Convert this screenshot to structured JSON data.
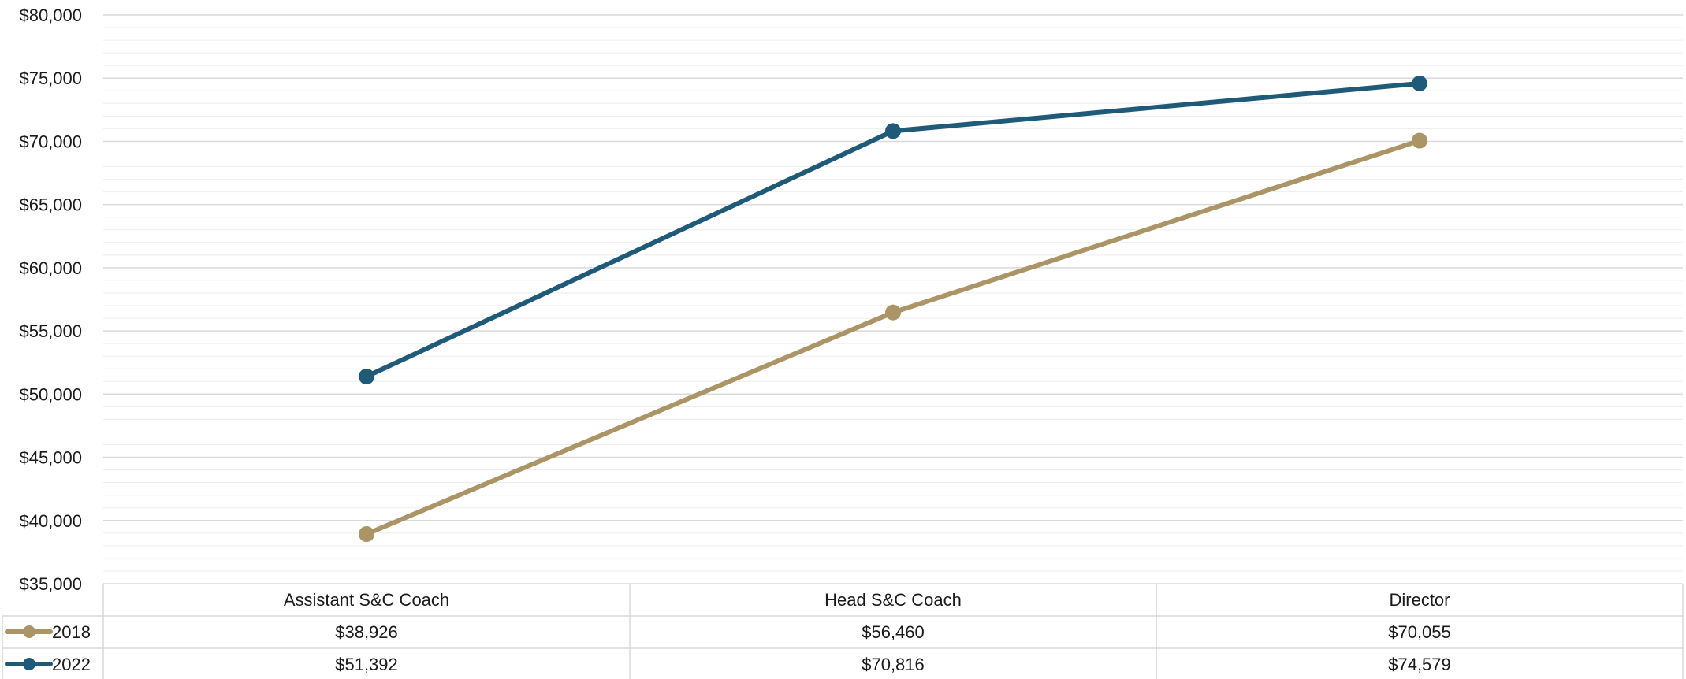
{
  "chart_data": {
    "type": "line",
    "categories": [
      "Assistant S&C Coach",
      "Head S&C Coach",
      "Director"
    ],
    "series": [
      {
        "name": "2018",
        "values": [
          38926,
          56460,
          70055
        ],
        "labels": [
          "$38,926",
          "$56,460",
          "$70,055"
        ],
        "color": "#AB9466"
      },
      {
        "name": "2022",
        "values": [
          51392,
          70816,
          74579
        ],
        "labels": [
          "$51,392",
          "$70,816",
          "$74,579"
        ],
        "color": "#1F5A78"
      }
    ],
    "y_ticks": [
      "$35,000",
      "$40,000",
      "$45,000",
      "$50,000",
      "$55,000",
      "$60,000",
      "$65,000",
      "$70,000",
      "$75,000",
      "$80,000"
    ],
    "ylim": [
      35000,
      80000
    ],
    "major_step": 5000,
    "minor_step": 1000,
    "grid": true,
    "legend": "data-table",
    "gridline_color": "#D9D9D9",
    "minor_gridline_color": "#EDEDED"
  }
}
